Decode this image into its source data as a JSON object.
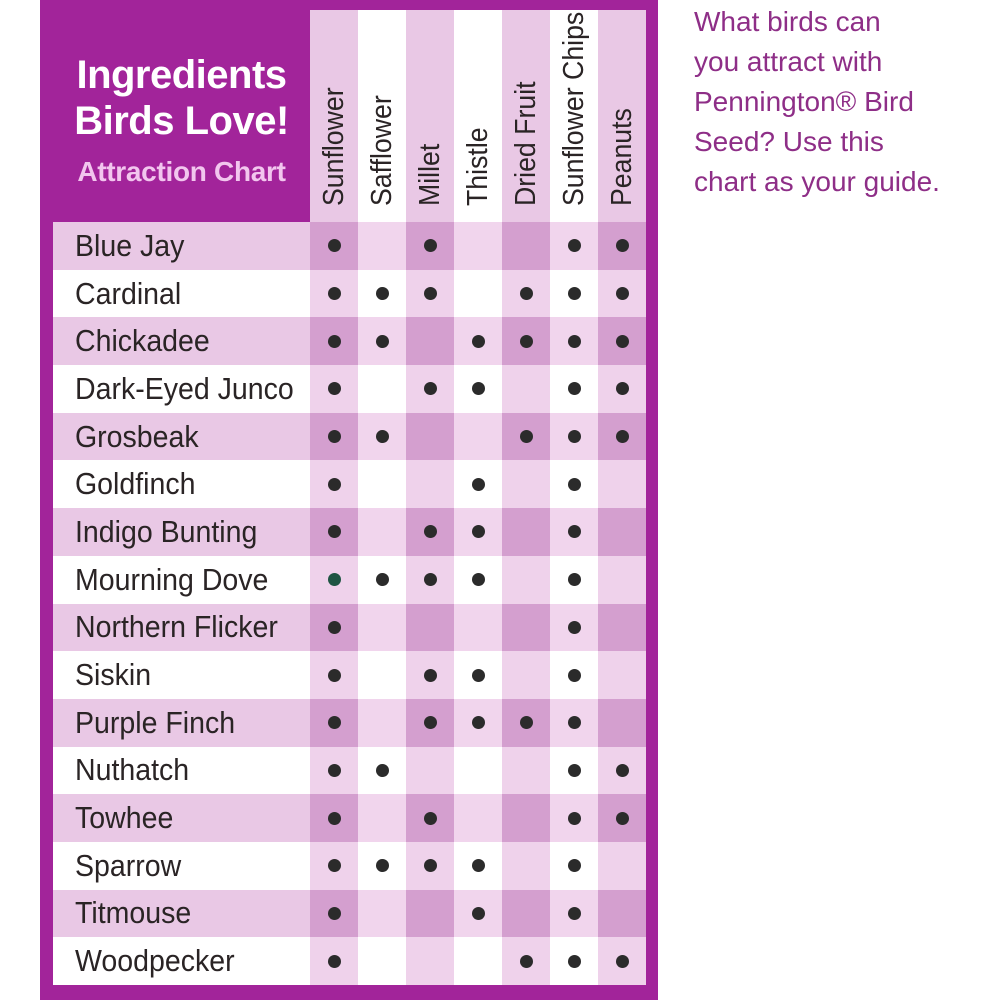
{
  "colors": {
    "frame_magenta": "#A2249A",
    "title_white": "#FFFFFF",
    "subtitle_pink": "#F2C6EE",
    "label_row_pink": "#E9C8E5",
    "cell_dark_pink": "#D49FCF",
    "cell_light_pink": "#F1D5ED",
    "cell_pale_pink": "#EFD2EB",
    "row_white": "#FFFFFF",
    "dot_black": "#2B2B2B",
    "dot_green": "#1F5543",
    "text_dark": "#2A2425",
    "note_purple": "#8E2E87"
  },
  "header": {
    "title_line1": "Ingredients",
    "title_line2": "Birds Love!",
    "subtitle": "Attraction Chart"
  },
  "note": {
    "lines": [
      "What birds can",
      "you attract with",
      "Pennington® Bird",
      "Seed? Use this",
      "chart as your guide."
    ]
  },
  "columns": [
    "Sunflower",
    "Safflower",
    "Millet",
    "Thistle",
    "Dried Fruit",
    "Sunflower Chips",
    "Peanuts"
  ],
  "rows": [
    {
      "bird": "Blue Jay",
      "dots": [
        1,
        0,
        1,
        0,
        0,
        1,
        1
      ]
    },
    {
      "bird": "Cardinal",
      "dots": [
        1,
        1,
        1,
        0,
        1,
        1,
        1
      ]
    },
    {
      "bird": "Chickadee",
      "dots": [
        1,
        1,
        0,
        1,
        1,
        1,
        1
      ]
    },
    {
      "bird": "Dark-Eyed Junco",
      "dots": [
        1,
        0,
        1,
        1,
        0,
        1,
        1
      ]
    },
    {
      "bird": "Grosbeak",
      "dots": [
        1,
        1,
        0,
        0,
        1,
        1,
        1
      ]
    },
    {
      "bird": "Goldfinch",
      "dots": [
        1,
        0,
        0,
        1,
        0,
        1,
        0
      ]
    },
    {
      "bird": "Indigo Bunting",
      "dots": [
        1,
        0,
        1,
        1,
        0,
        1,
        0
      ]
    },
    {
      "bird": "Mourning Dove",
      "dots": [
        2,
        1,
        1,
        1,
        0,
        1,
        0
      ]
    },
    {
      "bird": "Northern Flicker",
      "dots": [
        1,
        0,
        0,
        0,
        0,
        1,
        0
      ]
    },
    {
      "bird": "Siskin",
      "dots": [
        1,
        0,
        1,
        1,
        0,
        1,
        0
      ]
    },
    {
      "bird": "Purple Finch",
      "dots": [
        1,
        0,
        1,
        1,
        1,
        1,
        0
      ]
    },
    {
      "bird": "Nuthatch",
      "dots": [
        1,
        1,
        0,
        0,
        0,
        1,
        1
      ]
    },
    {
      "bird": "Towhee",
      "dots": [
        1,
        0,
        1,
        0,
        0,
        1,
        1
      ]
    },
    {
      "bird": "Sparrow",
      "dots": [
        1,
        1,
        1,
        1,
        0,
        1,
        0
      ]
    },
    {
      "bird": "Titmouse",
      "dots": [
        1,
        0,
        0,
        1,
        0,
        1,
        0
      ]
    },
    {
      "bird": "Woodpecker",
      "dots": [
        1,
        0,
        0,
        0,
        1,
        1,
        1
      ]
    }
  ],
  "chart_data": {
    "type": "table",
    "title": "Ingredients Birds Love! Attraction Chart",
    "columns": [
      "Sunflower",
      "Safflower",
      "Millet",
      "Thistle",
      "Dried Fruit",
      "Sunflower Chips",
      "Peanuts"
    ],
    "rows": [
      "Blue Jay",
      "Cardinal",
      "Chickadee",
      "Dark-Eyed Junco",
      "Grosbeak",
      "Goldfinch",
      "Indigo Bunting",
      "Mourning Dove",
      "Northern Flicker",
      "Siskin",
      "Purple Finch",
      "Nuthatch",
      "Towhee",
      "Sparrow",
      "Titmouse",
      "Woodpecker"
    ],
    "matrix": [
      [
        1,
        0,
        1,
        0,
        0,
        1,
        1
      ],
      [
        1,
        1,
        1,
        0,
        1,
        1,
        1
      ],
      [
        1,
        1,
        0,
        1,
        1,
        1,
        1
      ],
      [
        1,
        0,
        1,
        1,
        0,
        1,
        1
      ],
      [
        1,
        1,
        0,
        0,
        1,
        1,
        1
      ],
      [
        1,
        0,
        0,
        1,
        0,
        1,
        0
      ],
      [
        1,
        0,
        1,
        1,
        0,
        1,
        0
      ],
      [
        2,
        1,
        1,
        1,
        0,
        1,
        0
      ],
      [
        1,
        0,
        0,
        0,
        0,
        1,
        0
      ],
      [
        1,
        0,
        1,
        1,
        0,
        1,
        0
      ],
      [
        1,
        0,
        1,
        1,
        1,
        1,
        0
      ],
      [
        1,
        1,
        0,
        0,
        0,
        1,
        1
      ],
      [
        1,
        0,
        1,
        0,
        0,
        1,
        1
      ],
      [
        1,
        1,
        1,
        1,
        0,
        1,
        0
      ],
      [
        1,
        0,
        0,
        1,
        0,
        1,
        0
      ],
      [
        1,
        0,
        0,
        0,
        1,
        1,
        1
      ]
    ],
    "cell_legend": {
      "0": "blank (bird not attracted)",
      "1": "black dot (bird attracted to ingredient)",
      "2": "dark-green dot (bird attracted to ingredient)"
    },
    "legend_position": "none",
    "grid": "checkerboard pink/white stripes"
  }
}
